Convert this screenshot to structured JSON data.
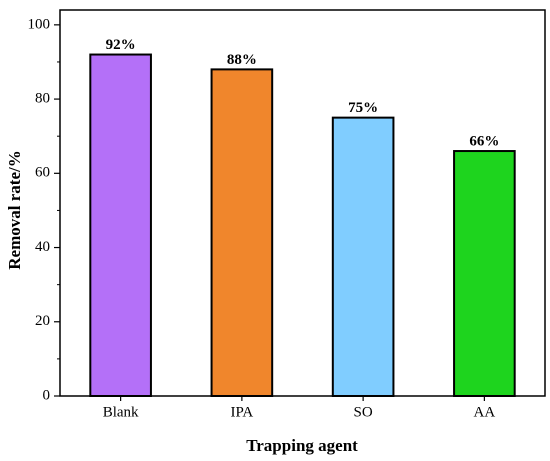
{
  "chart_data": {
    "type": "bar",
    "xlabel": "Trapping agent",
    "ylabel": "Removal rate/%",
    "categories": [
      "Blank",
      "IPA",
      "SO",
      "AA"
    ],
    "values": [
      92,
      88,
      75,
      66
    ],
    "value_labels": [
      "92%",
      "88%",
      "75%",
      "66%"
    ],
    "colors": [
      "#b470f8",
      "#f0862c",
      "#80cdff",
      "#1ed41e"
    ],
    "ylim": [
      0,
      104
    ],
    "yticks": [
      0,
      20,
      40,
      60,
      80,
      100
    ],
    "grid": false
  }
}
